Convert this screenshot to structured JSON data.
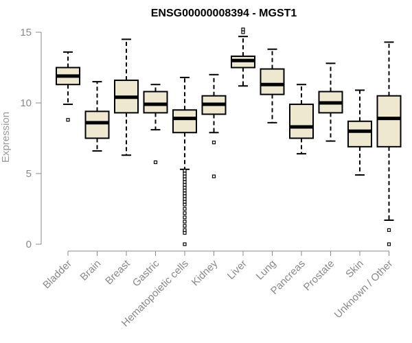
{
  "chart_data": {
    "type": "boxplot",
    "title": "ENSG00000008394 - MGST1",
    "xlabel": "",
    "ylabel": "Expression",
    "ylim": [
      0,
      15
    ],
    "yticks": [
      0,
      5,
      10,
      15
    ],
    "box_fill": "#eee8d0",
    "categories": [
      "Bladder",
      "Brain",
      "Breast",
      "Gastric",
      "Hematopoietic cells",
      "Kidney",
      "Liver",
      "Lung",
      "Pancreas",
      "Prostate",
      "Skin",
      "Unknown / Other"
    ],
    "series": [
      {
        "name": "Bladder",
        "whisker_low": 9.9,
        "q1": 11.3,
        "median": 11.9,
        "q3": 12.5,
        "whisker_high": 13.6,
        "outliers": [
          8.8
        ]
      },
      {
        "name": "Brain",
        "whisker_low": 6.6,
        "q1": 7.5,
        "median": 8.6,
        "q3": 9.4,
        "whisker_high": 11.5,
        "outliers": []
      },
      {
        "name": "Breast",
        "whisker_low": 6.3,
        "q1": 9.3,
        "median": 10.4,
        "q3": 11.6,
        "whisker_high": 14.5,
        "outliers": []
      },
      {
        "name": "Gastric",
        "whisker_low": 8.1,
        "q1": 9.3,
        "median": 9.9,
        "q3": 10.8,
        "whisker_high": 11.3,
        "outliers": [
          5.8
        ]
      },
      {
        "name": "Hematopoietic cells",
        "whisker_low": 5.3,
        "q1": 7.9,
        "median": 8.9,
        "q3": 9.5,
        "whisker_high": 11.8,
        "outliers": [
          5.2,
          5.0,
          4.8,
          4.6,
          4.4,
          4.2,
          4.0,
          3.8,
          3.6,
          3.4,
          3.2,
          3.0,
          2.8,
          2.5,
          2.2,
          1.9,
          1.6,
          1.3,
          1.0,
          0.8,
          0.0
        ]
      },
      {
        "name": "Kidney",
        "whisker_low": 7.9,
        "q1": 9.2,
        "median": 9.9,
        "q3": 10.5,
        "whisker_high": 12.0,
        "outliers": [
          7.2,
          4.8
        ]
      },
      {
        "name": "Liver",
        "whisker_low": 11.2,
        "q1": 12.5,
        "median": 13.0,
        "q3": 13.3,
        "whisker_high": 14.7,
        "outliers": [
          15.0,
          15.2
        ]
      },
      {
        "name": "Lung",
        "whisker_low": 8.6,
        "q1": 10.6,
        "median": 11.3,
        "q3": 12.4,
        "whisker_high": 13.8,
        "outliers": []
      },
      {
        "name": "Pancreas",
        "whisker_low": 6.4,
        "q1": 7.5,
        "median": 8.3,
        "q3": 9.9,
        "whisker_high": 11.3,
        "outliers": []
      },
      {
        "name": "Prostate",
        "whisker_low": 7.3,
        "q1": 9.3,
        "median": 10.0,
        "q3": 10.8,
        "whisker_high": 12.8,
        "outliers": []
      },
      {
        "name": "Skin",
        "whisker_low": 4.9,
        "q1": 6.9,
        "median": 8.0,
        "q3": 8.7,
        "whisker_high": 10.9,
        "outliers": []
      },
      {
        "name": "Unknown / Other",
        "whisker_low": 1.7,
        "q1": 6.9,
        "median": 8.9,
        "q3": 10.5,
        "whisker_high": 14.3,
        "outliers": [
          1.0,
          0.0
        ]
      }
    ]
  }
}
